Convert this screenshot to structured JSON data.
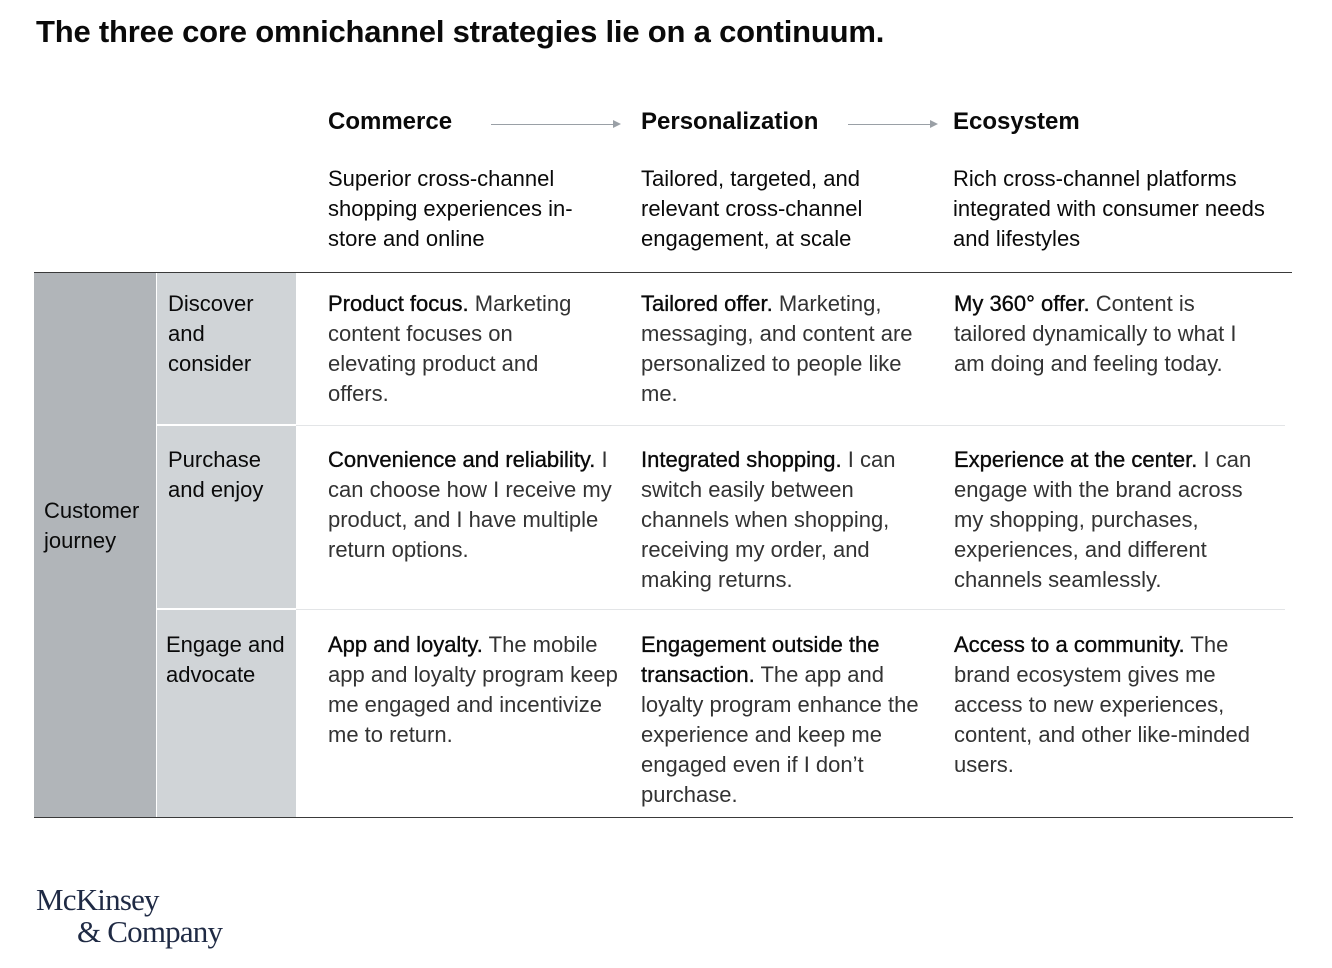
{
  "title": "The three core omnichannel strategies lie on a continuum.",
  "columns": [
    {
      "heading": "Commerce",
      "description": "Superior cross-channel shopping experiences in-store and online"
    },
    {
      "heading": "Personalization",
      "description": "Tailored, targeted, and relevant cross-channel engagement, at scale"
    },
    {
      "heading": "Ecosystem",
      "description": "Rich cross-channel platforms integrated with consumer needs and lifestyles"
    }
  ],
  "row_group_label": "Customer journey",
  "rows": [
    {
      "label": "Discover and consider",
      "cells": [
        {
          "lead": "Product focus.",
          "text": "Marketing content focuses on elevating product and offers."
        },
        {
          "lead": "Tailored offer.",
          "text": "Marketing, messaging, and content are personalized to people like me."
        },
        {
          "lead": "My 360° offer.",
          "text": "Content is tailored dynamically to what I am doing and feeling today."
        }
      ]
    },
    {
      "label": "Purchase and enjoy",
      "cells": [
        {
          "lead": "Convenience and reliability.",
          "text": "I can choose how I receive my product, and I have multiple return options."
        },
        {
          "lead": "Integrated shopping.",
          "text": "I can switch easily between channels when shopping, receiving my order, and making returns."
        },
        {
          "lead": "Experience at the center.",
          "text": "I can engage with the brand across my shopping, purchases, experiences, and different channels seamlessly."
        }
      ]
    },
    {
      "label": "Engage and advocate",
      "cells": [
        {
          "lead": "App and loyalty.",
          "text": "The mobile app and loyalty program keep me engaged and incentivize me to return."
        },
        {
          "lead": "Engagement outside the transaction.",
          "text": "The app and loyalty program enhance the experience and keep me engaged even if I don’t purchase."
        },
        {
          "lead": "Access to a community.",
          "text": "The brand ecosystem gives me access to new experiences, content, and other like-minded users."
        }
      ]
    }
  ],
  "logo": {
    "line1": "McKinsey",
    "line2": "& Company"
  }
}
